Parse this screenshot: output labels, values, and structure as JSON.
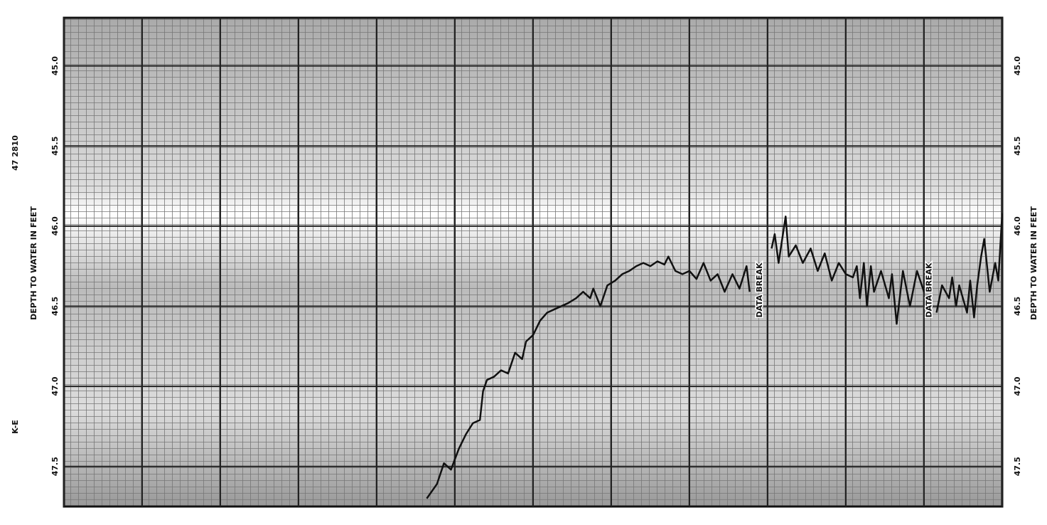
{
  "chart_data": {
    "type": "line",
    "y_label": "DEPTH TO WATER IN FEET",
    "side_texts": [
      "47 2810",
      "K-E"
    ],
    "invert_y": true,
    "xlim": [
      0,
      12
    ],
    "xticks": [
      0,
      1,
      2,
      3,
      4,
      5,
      6,
      7,
      8,
      9,
      10,
      11,
      12
    ],
    "ylim": [
      44.7,
      47.75
    ],
    "yticks": [
      {
        "value": 45,
        "label": "45.0"
      },
      {
        "value": 45.5,
        "label": "45.5"
      },
      {
        "value": 46,
        "label": "46.0"
      },
      {
        "value": 46.5,
        "label": "46.5"
      },
      {
        "value": 47,
        "label": "47.0"
      },
      {
        "value": 47.5,
        "label": "47.5"
      }
    ],
    "grid": true,
    "annotations": [
      {
        "text": "DATA BREAK",
        "x": 8.9,
        "y": 46.4
      },
      {
        "text": "DATA BREAK",
        "x": 11.07,
        "y": 46.4
      }
    ],
    "x": [
      4.64,
      4.77,
      4.86,
      4.95,
      5.05,
      5.14,
      5.23,
      5.32,
      5.36,
      5.41,
      5.5,
      5.59,
      5.68,
      5.77,
      5.86,
      5.91,
      6.0,
      6.09,
      6.18,
      6.27,
      6.36,
      6.45,
      6.55,
      6.64,
      6.73,
      6.77,
      6.86,
      6.95,
      7.05,
      7.14,
      7.23,
      7.32,
      7.41,
      7.5,
      7.59,
      7.68,
      7.73,
      7.82,
      7.91,
      8.0,
      8.09,
      8.18,
      8.27,
      8.36,
      8.45,
      8.55,
      8.64,
      8.73,
      8.77,
      9.0,
      9.05,
      9.09,
      9.14,
      9.18,
      9.23,
      9.27,
      9.36,
      9.45,
      9.55,
      9.64,
      9.73,
      9.82,
      9.91,
      10.0,
      10.09,
      10.14,
      10.18,
      10.23,
      10.27,
      10.32,
      10.36,
      10.45,
      10.55,
      10.59,
      10.65,
      10.73,
      10.82,
      10.91,
      11.0,
      11.09,
      11.12,
      11.16,
      11.23,
      11.32,
      11.36,
      11.41,
      11.45,
      11.55,
      11.59,
      11.64,
      11.68,
      11.73,
      11.77,
      11.84,
      11.91,
      11.95,
      12.0
    ],
    "series": [
      {
        "name": "Depth to water",
        "color": "#111111",
        "values": [
          47.7,
          47.61,
          47.48,
          47.52,
          47.39,
          47.3,
          47.23,
          47.21,
          47.03,
          46.96,
          46.94,
          46.9,
          46.92,
          46.79,
          46.83,
          46.72,
          46.68,
          46.59,
          46.54,
          46.52,
          46.5,
          46.48,
          46.45,
          46.41,
          46.45,
          46.39,
          46.5,
          46.37,
          46.34,
          46.3,
          46.28,
          46.25,
          46.23,
          46.25,
          46.22,
          46.24,
          46.19,
          46.28,
          46.3,
          46.28,
          46.33,
          46.23,
          46.34,
          46.3,
          46.41,
          46.3,
          46.39,
          46.25,
          46.41,
          null,
          46.14,
          46.05,
          46.23,
          46.1,
          45.94,
          46.19,
          46.12,
          46.23,
          46.14,
          46.28,
          46.17,
          46.34,
          46.23,
          46.3,
          46.32,
          46.25,
          46.45,
          46.23,
          46.5,
          46.25,
          46.41,
          46.28,
          46.45,
          46.3,
          46.61,
          46.28,
          46.5,
          46.28,
          46.41,
          46.32,
          null,
          46.54,
          46.37,
          46.45,
          46.32,
          46.5,
          46.37,
          46.54,
          46.34,
          46.57,
          46.37,
          46.19,
          46.08,
          46.41,
          46.23,
          46.34,
          45.92
        ]
      }
    ]
  }
}
